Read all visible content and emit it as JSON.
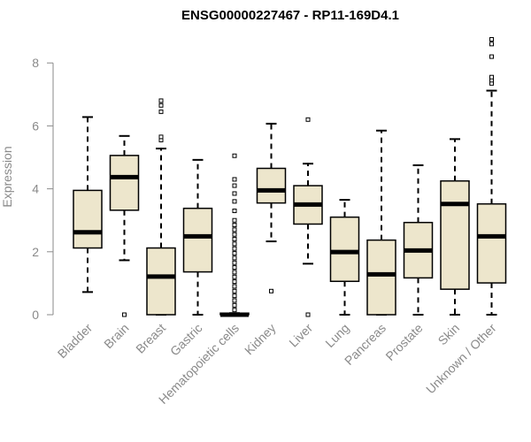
{
  "chart_data": {
    "type": "boxplot",
    "title": "ENSG00000227467 - RP11-169D4.1",
    "xlabel": "",
    "ylabel": "Expression",
    "ylim": [
      0,
      8
    ],
    "yticks": [
      0,
      2,
      4,
      6,
      8
    ],
    "box_color": "#ede6cc",
    "line_color": "#000000",
    "categories": [
      "Bladder",
      "Brain",
      "Breast",
      "Gastric",
      "Hematopoietic cells",
      "Kidney",
      "Liver",
      "Lung",
      "Pancreas",
      "Prostate",
      "Skin",
      "Unknown / Other"
    ],
    "boxes": [
      {
        "category": "Bladder",
        "min": 0.72,
        "q1": 2.12,
        "median": 2.62,
        "q3": 3.95,
        "max": 6.28,
        "outliers": []
      },
      {
        "category": "Brain",
        "min": 1.73,
        "q1": 3.32,
        "median": 4.37,
        "q3": 5.06,
        "max": 5.68,
        "outliers": [
          0.0
        ]
      },
      {
        "category": "Breast",
        "min": 0.0,
        "q1": 0.0,
        "median": 1.21,
        "q3": 2.12,
        "max": 5.28,
        "outliers": [
          5.55,
          5.65,
          6.45,
          6.65,
          6.8
        ]
      },
      {
        "category": "Gastric",
        "min": 0.0,
        "q1": 1.36,
        "median": 2.49,
        "q3": 3.38,
        "max": 4.92,
        "outliers": []
      },
      {
        "category": "Hematopoietic cells",
        "min": 0.0,
        "q1": 0.0,
        "median": 0.0,
        "q3": 0.05,
        "max": 0.05,
        "outliers": [
          0.15,
          0.3,
          0.45,
          0.6,
          0.75,
          0.9,
          1.05,
          1.2,
          1.35,
          1.5,
          1.65,
          1.8,
          1.95,
          2.1,
          2.25,
          2.4,
          2.55,
          2.7,
          2.85,
          3.0,
          3.3,
          3.6,
          3.85,
          4.1,
          4.3,
          5.05
        ]
      },
      {
        "category": "Kidney",
        "min": 2.33,
        "q1": 3.55,
        "median": 3.95,
        "q3": 4.65,
        "max": 6.07,
        "outliers": [
          0.75
        ]
      },
      {
        "category": "Liver",
        "min": 1.62,
        "q1": 2.88,
        "median": 3.5,
        "q3": 4.1,
        "max": 4.8,
        "outliers": [
          0.0,
          6.2
        ]
      },
      {
        "category": "Lung",
        "min": 0.0,
        "q1": 1.06,
        "median": 1.99,
        "q3": 3.1,
        "max": 3.65,
        "outliers": []
      },
      {
        "category": "Pancreas",
        "min": 0.0,
        "q1": 0.0,
        "median": 1.28,
        "q3": 2.37,
        "max": 5.85,
        "outliers": []
      },
      {
        "category": "Prostate",
        "min": 0.0,
        "q1": 1.17,
        "median": 2.04,
        "q3": 2.93,
        "max": 4.75,
        "outliers": []
      },
      {
        "category": "Skin",
        "min": 0.0,
        "q1": 0.81,
        "median": 3.52,
        "q3": 4.25,
        "max": 5.58,
        "outliers": []
      },
      {
        "category": "Unknown / Other",
        "min": 0.0,
        "q1": 1.01,
        "median": 2.49,
        "q3": 3.52,
        "max": 7.12,
        "outliers": [
          7.35,
          7.45,
          7.55,
          8.2,
          8.6,
          8.75
        ]
      }
    ]
  }
}
